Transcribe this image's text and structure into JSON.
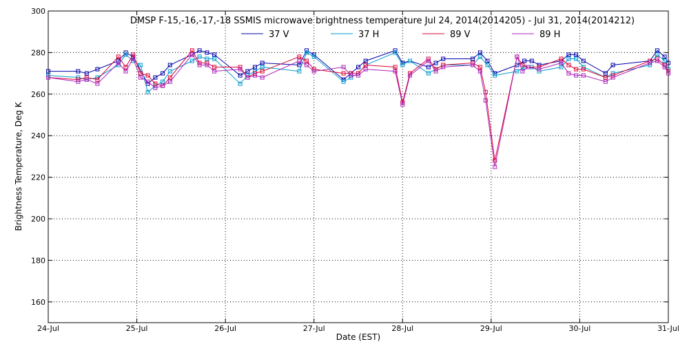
{
  "chart_data": {
    "type": "line",
    "title": "DMSP F-15,-16,-17,-18 SSMIS microwave brightness temperature Jul 24, 2014(2014205) - Jul 31, 2014(2014212)",
    "xlabel": "Date (EST)",
    "ylabel": "Brightness Temperature, Deg K",
    "xlim": [
      "24-Jul 00:00",
      "31-Jul 00:00"
    ],
    "ylim": [
      150,
      300
    ],
    "x_tick_labels": [
      "24-Jul",
      "25-Jul",
      "26-Jul",
      "27-Jul",
      "28-Jul",
      "29-Jul",
      "30-Jul",
      "31-Jul"
    ],
    "y_ticks": [
      160,
      180,
      200,
      220,
      240,
      260,
      280,
      300
    ],
    "grid": true,
    "legend_position": "top-center",
    "series": [
      {
        "name": "37 V",
        "color": "#0000aa",
        "points": [
          {
            "x": "24-Jul 00:00",
            "y": 271
          },
          {
            "x": "24-Jul 08:05",
            "y": 271
          },
          {
            "x": "24-Jul 10:25",
            "y": 270
          },
          {
            "x": "24-Jul 13:20",
            "y": 272
          },
          {
            "x": "24-Jul 19:00",
            "y": 276
          },
          {
            "x": "24-Jul 21:00",
            "y": 280
          },
          {
            "x": "24-Jul 23:00",
            "y": 278
          },
          {
            "x": "25-Jul 03:00",
            "y": 265
          },
          {
            "x": "25-Jul 05:00",
            "y": 268
          },
          {
            "x": "25-Jul 07:00",
            "y": 270
          },
          {
            "x": "25-Jul 09:00",
            "y": 274
          },
          {
            "x": "25-Jul 15:00",
            "y": 279
          },
          {
            "x": "25-Jul 17:00",
            "y": 281
          },
          {
            "x": "25-Jul 19:00",
            "y": 280
          },
          {
            "x": "25-Jul 21:00",
            "y": 279
          },
          {
            "x": "26-Jul 04:00",
            "y": 269
          },
          {
            "x": "26-Jul 06:00",
            "y": 271
          },
          {
            "x": "26-Jul 08:00",
            "y": 273
          },
          {
            "x": "26-Jul 10:00",
            "y": 275
          },
          {
            "x": "26-Jul 20:00",
            "y": 274
          },
          {
            "x": "26-Jul 22:00",
            "y": 281
          },
          {
            "x": "27-Jul 00:00",
            "y": 279
          },
          {
            "x": "27-Jul 08:00",
            "y": 267
          },
          {
            "x": "27-Jul 10:00",
            "y": 270
          },
          {
            "x": "27-Jul 12:00",
            "y": 273
          },
          {
            "x": "27-Jul 14:00",
            "y": 276
          },
          {
            "x": "27-Jul 22:00",
            "y": 281
          },
          {
            "x": "28-Jul 00:00",
            "y": 275
          },
          {
            "x": "28-Jul 02:00",
            "y": 276
          },
          {
            "x": "28-Jul 07:00",
            "y": 273
          },
          {
            "x": "28-Jul 09:00",
            "y": 275
          },
          {
            "x": "28-Jul 11:00",
            "y": 277
          },
          {
            "x": "28-Jul 19:00",
            "y": 277
          },
          {
            "x": "28-Jul 21:00",
            "y": 280
          },
          {
            "x": "28-Jul 23:00",
            "y": 276
          },
          {
            "x": "29-Jul 01:00",
            "y": 270
          },
          {
            "x": "29-Jul 07:00",
            "y": 274
          },
          {
            "x": "29-Jul 09:00",
            "y": 276
          },
          {
            "x": "29-Jul 11:00",
            "y": 276
          },
          {
            "x": "29-Jul 13:00",
            "y": 274
          },
          {
            "x": "29-Jul 19:00",
            "y": 276
          },
          {
            "x": "29-Jul 21:00",
            "y": 279
          },
          {
            "x": "29-Jul 23:00",
            "y": 279
          },
          {
            "x": "30-Jul 01:00",
            "y": 276
          },
          {
            "x": "30-Jul 07:00",
            "y": 270
          },
          {
            "x": "30-Jul 09:00",
            "y": 274
          },
          {
            "x": "30-Jul 19:00",
            "y": 276
          },
          {
            "x": "30-Jul 21:00",
            "y": 281
          },
          {
            "x": "30-Jul 23:00",
            "y": 278
          },
          {
            "x": "31-Jul 00:00",
            "y": 275
          }
        ]
      },
      {
        "name": "37 H",
        "color": "#0099cc",
        "points": [
          {
            "x": "24-Jul 00:00",
            "y": 269
          },
          {
            "x": "24-Jul 08:05",
            "y": 268
          },
          {
            "x": "24-Jul 10:25",
            "y": 267
          },
          {
            "x": "24-Jul 13:20",
            "y": 268
          },
          {
            "x": "24-Jul 19:00",
            "y": 274
          },
          {
            "x": "24-Jul 21:00",
            "y": 279
          },
          {
            "x": "24-Jul 23:00",
            "y": 276
          },
          {
            "x": "25-Jul 01:00",
            "y": 274
          },
          {
            "x": "25-Jul 03:00",
            "y": 261
          },
          {
            "x": "25-Jul 05:00",
            "y": 264
          },
          {
            "x": "25-Jul 07:00",
            "y": 266
          },
          {
            "x": "25-Jul 09:00",
            "y": 271
          },
          {
            "x": "25-Jul 15:00",
            "y": 276
          },
          {
            "x": "25-Jul 17:00",
            "y": 278
          },
          {
            "x": "25-Jul 19:00",
            "y": 277
          },
          {
            "x": "25-Jul 21:00",
            "y": 277
          },
          {
            "x": "26-Jul 04:00",
            "y": 265
          },
          {
            "x": "26-Jul 06:00",
            "y": 269
          },
          {
            "x": "26-Jul 08:00",
            "y": 271
          },
          {
            "x": "26-Jul 10:00",
            "y": 273
          },
          {
            "x": "26-Jul 20:00",
            "y": 271
          },
          {
            "x": "26-Jul 22:00",
            "y": 280
          },
          {
            "x": "27-Jul 00:00",
            "y": 278
          },
          {
            "x": "27-Jul 08:00",
            "y": 266
          },
          {
            "x": "27-Jul 10:00",
            "y": 268
          },
          {
            "x": "27-Jul 12:00",
            "y": 270
          },
          {
            "x": "27-Jul 14:00",
            "y": 274
          },
          {
            "x": "27-Jul 22:00",
            "y": 280
          },
          {
            "x": "28-Jul 00:00",
            "y": 274
          },
          {
            "x": "28-Jul 02:00",
            "y": 276
          },
          {
            "x": "28-Jul 07:00",
            "y": 270
          },
          {
            "x": "28-Jul 09:00",
            "y": 272
          },
          {
            "x": "28-Jul 11:00",
            "y": 274
          },
          {
            "x": "28-Jul 19:00",
            "y": 274
          },
          {
            "x": "28-Jul 21:00",
            "y": 278
          },
          {
            "x": "28-Jul 23:00",
            "y": 274
          },
          {
            "x": "29-Jul 01:00",
            "y": 269
          },
          {
            "x": "29-Jul 07:00",
            "y": 271
          },
          {
            "x": "29-Jul 09:00",
            "y": 273
          },
          {
            "x": "29-Jul 11:00",
            "y": 273
          },
          {
            "x": "29-Jul 13:00",
            "y": 271
          },
          {
            "x": "29-Jul 19:00",
            "y": 273
          },
          {
            "x": "29-Jul 21:00",
            "y": 277
          },
          {
            "x": "29-Jul 23:00",
            "y": 277
          },
          {
            "x": "30-Jul 01:00",
            "y": 273
          },
          {
            "x": "30-Jul 07:00",
            "y": 268
          },
          {
            "x": "30-Jul 09:00",
            "y": 270
          },
          {
            "x": "30-Jul 19:00",
            "y": 274
          },
          {
            "x": "30-Jul 21:00",
            "y": 279
          },
          {
            "x": "30-Jul 23:00",
            "y": 276
          },
          {
            "x": "31-Jul 00:00",
            "y": 272
          }
        ]
      },
      {
        "name": "89 V",
        "color": "#dd0033",
        "points": [
          {
            "x": "24-Jul 00:00",
            "y": 268
          },
          {
            "x": "24-Jul 08:05",
            "y": 267
          },
          {
            "x": "24-Jul 10:25",
            "y": 268
          },
          {
            "x": "24-Jul 13:20",
            "y": 267
          },
          {
            "x": "24-Jul 19:00",
            "y": 278
          },
          {
            "x": "24-Jul 21:00",
            "y": 273
          },
          {
            "x": "24-Jul 23:00",
            "y": 279
          },
          {
            "x": "25-Jul 01:00",
            "y": 270
          },
          {
            "x": "25-Jul 03:00",
            "y": 269
          },
          {
            "x": "25-Jul 05:00",
            "y": 265
          },
          {
            "x": "25-Jul 07:00",
            "y": 264
          },
          {
            "x": "25-Jul 09:00",
            "y": 268
          },
          {
            "x": "25-Jul 15:00",
            "y": 281
          },
          {
            "x": "25-Jul 17:00",
            "y": 275
          },
          {
            "x": "25-Jul 19:00",
            "y": 275
          },
          {
            "x": "25-Jul 21:00",
            "y": 273
          },
          {
            "x": "26-Jul 04:00",
            "y": 273
          },
          {
            "x": "26-Jul 06:00",
            "y": 268
          },
          {
            "x": "26-Jul 08:00",
            "y": 270
          },
          {
            "x": "26-Jul 10:00",
            "y": 271
          },
          {
            "x": "26-Jul 20:00",
            "y": 278
          },
          {
            "x": "26-Jul 22:00",
            "y": 276
          },
          {
            "x": "27-Jul 00:00",
            "y": 272
          },
          {
            "x": "27-Jul 08:00",
            "y": 270
          },
          {
            "x": "27-Jul 10:00",
            "y": 270
          },
          {
            "x": "27-Jul 12:00",
            "y": 270
          },
          {
            "x": "27-Jul 14:00",
            "y": 274
          },
          {
            "x": "27-Jul 22:00",
            "y": 273
          },
          {
            "x": "28-Jul 00:00",
            "y": 256
          },
          {
            "x": "28-Jul 02:00",
            "y": 270
          },
          {
            "x": "28-Jul 07:00",
            "y": 277
          },
          {
            "x": "28-Jul 09:00",
            "y": 272
          },
          {
            "x": "28-Jul 11:00",
            "y": 274
          },
          {
            "x": "28-Jul 19:00",
            "y": 275
          },
          {
            "x": "28-Jul 21:00",
            "y": 273
          },
          {
            "x": "28-Jul 22:30",
            "y": 261
          },
          {
            "x": "29-Jul 01:00",
            "y": 228
          },
          {
            "x": "29-Jul 07:00",
            "y": 278
          },
          {
            "x": "29-Jul 08:30",
            "y": 274
          },
          {
            "x": "29-Jul 10:00",
            "y": 273
          },
          {
            "x": "29-Jul 13:00",
            "y": 273
          },
          {
            "x": "29-Jul 19:00",
            "y": 277
          },
          {
            "x": "29-Jul 21:00",
            "y": 274
          },
          {
            "x": "29-Jul 23:00",
            "y": 272
          },
          {
            "x": "30-Jul 01:00",
            "y": 272
          },
          {
            "x": "30-Jul 07:00",
            "y": 268
          },
          {
            "x": "30-Jul 09:00",
            "y": 269
          },
          {
            "x": "30-Jul 19:00",
            "y": 276
          },
          {
            "x": "30-Jul 21:00",
            "y": 277
          },
          {
            "x": "30-Jul 23:00",
            "y": 274
          },
          {
            "x": "31-Jul 00:00",
            "y": 271
          }
        ]
      },
      {
        "name": "89 H",
        "color": "#aa22bb",
        "points": [
          {
            "x": "24-Jul 00:00",
            "y": 268
          },
          {
            "x": "24-Jul 08:05",
            "y": 266
          },
          {
            "x": "24-Jul 10:25",
            "y": 267
          },
          {
            "x": "24-Jul 13:20",
            "y": 265
          },
          {
            "x": "24-Jul 19:00",
            "y": 275
          },
          {
            "x": "24-Jul 21:00",
            "y": 271
          },
          {
            "x": "24-Jul 23:00",
            "y": 277
          },
          {
            "x": "25-Jul 01:00",
            "y": 268
          },
          {
            "x": "25-Jul 03:00",
            "y": 266
          },
          {
            "x": "25-Jul 05:00",
            "y": 263
          },
          {
            "x": "25-Jul 07:00",
            "y": 264
          },
          {
            "x": "25-Jul 09:00",
            "y": 266
          },
          {
            "x": "25-Jul 15:00",
            "y": 279
          },
          {
            "x": "25-Jul 17:00",
            "y": 274
          },
          {
            "x": "25-Jul 19:00",
            "y": 274
          },
          {
            "x": "25-Jul 21:00",
            "y": 271
          },
          {
            "x": "26-Jul 04:00",
            "y": 272
          },
          {
            "x": "26-Jul 06:00",
            "y": 268
          },
          {
            "x": "26-Jul 08:00",
            "y": 269
          },
          {
            "x": "26-Jul 10:00",
            "y": 268
          },
          {
            "x": "26-Jul 20:00",
            "y": 276
          },
          {
            "x": "26-Jul 22:00",
            "y": 274
          },
          {
            "x": "27-Jul 00:00",
            "y": 271
          },
          {
            "x": "27-Jul 08:00",
            "y": 273
          },
          {
            "x": "27-Jul 10:00",
            "y": 269
          },
          {
            "x": "27-Jul 12:00",
            "y": 269
          },
          {
            "x": "27-Jul 14:00",
            "y": 272
          },
          {
            "x": "27-Jul 22:00",
            "y": 271
          },
          {
            "x": "28-Jul 00:00",
            "y": 255
          },
          {
            "x": "28-Jul 02:00",
            "y": 269
          },
          {
            "x": "28-Jul 07:00",
            "y": 276
          },
          {
            "x": "28-Jul 09:00",
            "y": 271
          },
          {
            "x": "28-Jul 11:00",
            "y": 273
          },
          {
            "x": "28-Jul 19:00",
            "y": 274
          },
          {
            "x": "28-Jul 21:00",
            "y": 271
          },
          {
            "x": "28-Jul 22:30",
            "y": 257
          },
          {
            "x": "29-Jul 01:00",
            "y": 225
          },
          {
            "x": "29-Jul 07:00",
            "y": 278
          },
          {
            "x": "29-Jul 08:30",
            "y": 271
          },
          {
            "x": "29-Jul 10:00",
            "y": 273
          },
          {
            "x": "29-Jul 13:00",
            "y": 272
          },
          {
            "x": "29-Jul 19:00",
            "y": 275
          },
          {
            "x": "29-Jul 21:00",
            "y": 270
          },
          {
            "x": "29-Jul 23:00",
            "y": 269
          },
          {
            "x": "30-Jul 01:00",
            "y": 269
          },
          {
            "x": "30-Jul 07:00",
            "y": 266
          },
          {
            "x": "30-Jul 09:00",
            "y": 268
          },
          {
            "x": "30-Jul 19:00",
            "y": 275
          },
          {
            "x": "30-Jul 21:00",
            "y": 276
          },
          {
            "x": "30-Jul 23:00",
            "y": 273
          },
          {
            "x": "31-Jul 00:00",
            "y": 270
          }
        ]
      }
    ]
  }
}
